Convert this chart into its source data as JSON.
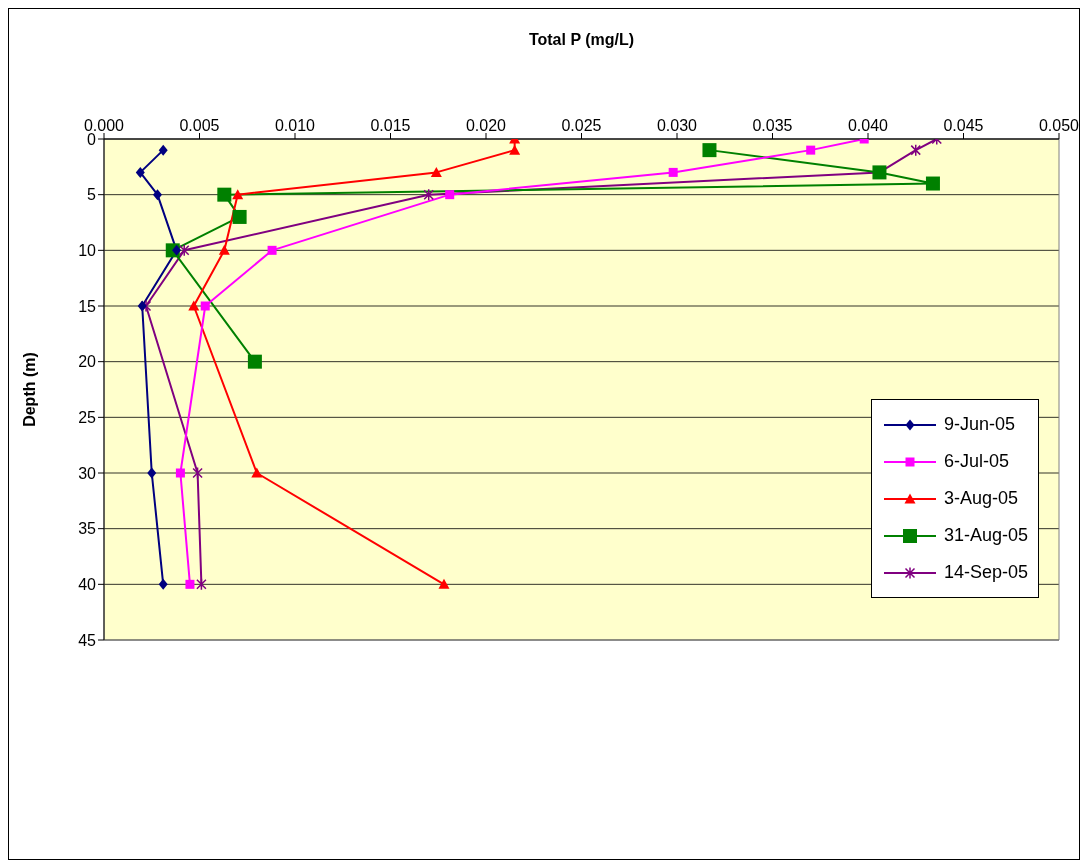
{
  "chart_data": {
    "type": "line",
    "xlabel": "Total P (mg/L)",
    "ylabel": "Depth (m)",
    "xlim": [
      0,
      0.05
    ],
    "xticks": [
      {
        "value": 0,
        "label": "0.000"
      },
      {
        "value": 0.005,
        "label": "0.005"
      },
      {
        "value": 0.01,
        "label": "0.010"
      },
      {
        "value": 0.015,
        "label": "0.015"
      },
      {
        "value": 0.02,
        "label": "0.020"
      },
      {
        "value": 0.025,
        "label": "0.025"
      },
      {
        "value": 0.03,
        "label": "0.030"
      },
      {
        "value": 0.035,
        "label": "0.035"
      },
      {
        "value": 0.04,
        "label": "0.040"
      },
      {
        "value": 0.045,
        "label": "0.045"
      },
      {
        "value": 0.05,
        "label": "0.050"
      }
    ],
    "ylim": [
      45,
      0
    ],
    "yticks": [
      0,
      5,
      10,
      15,
      20,
      25,
      30,
      35,
      40,
      45
    ],
    "grid": "y",
    "legend": "right",
    "series": [
      {
        "name": "9-Jun-05",
        "color": "#000080",
        "marker": "diamond",
        "x": [
          0.0031,
          0.0019,
          0.0028,
          0.0038,
          0.002,
          0.0025,
          0.0031
        ],
        "values": [
          1,
          3,
          5,
          10,
          15,
          30,
          40
        ]
      },
      {
        "name": "6-Jul-05",
        "color": "#ff00ff",
        "marker": "square",
        "x": [
          0.0398,
          0.037,
          0.0298,
          0.0181,
          0.0088,
          0.0053,
          0.004,
          0.0045
        ],
        "values": [
          0,
          1,
          3,
          5,
          10,
          15,
          30,
          40
        ]
      },
      {
        "name": "3-Aug-05",
        "color": "#ff0000",
        "marker": "triangle",
        "x": [
          0.0215,
          0.0215,
          0.0174,
          0.007,
          0.0063,
          0.0047,
          0.008,
          0.0178
        ],
        "values": [
          0,
          1,
          3,
          5,
          10,
          15,
          30,
          40
        ]
      },
      {
        "name": "31-Aug-05",
        "color": "#008000",
        "marker": "square",
        "x": [
          0.0317,
          0.0406,
          0.0434,
          0.0063,
          0.0071,
          0.0036,
          0.0079
        ],
        "values": [
          1,
          3,
          4,
          5,
          7,
          10,
          20
        ]
      },
      {
        "name": "14-Sep-05",
        "color": "#800080",
        "marker": "cross",
        "x": [
          0.0436,
          0.0425,
          0.0406,
          0.017,
          0.0042,
          0.0022,
          0.0049,
          0.0051
        ],
        "values": [
          0,
          1,
          3,
          5,
          10,
          15,
          30,
          40
        ]
      }
    ]
  }
}
